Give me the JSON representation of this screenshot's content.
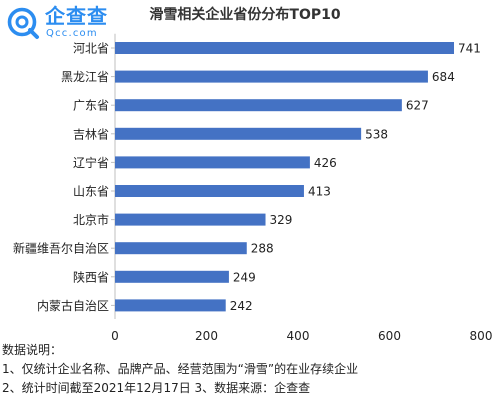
{
  "logo": {
    "name": "企查查",
    "domain": "Qcc.com"
  },
  "chart_data": {
    "type": "bar",
    "orientation": "horizontal",
    "title": "滑雪相关企业省份分布TOP10",
    "categories": [
      "河北省",
      "黑龙江省",
      "广东省",
      "吉林省",
      "辽宁省",
      "山东省",
      "北京市",
      "新疆维吾尔自治区",
      "陕西省",
      "内蒙古自治区"
    ],
    "values": [
      741,
      684,
      627,
      538,
      426,
      413,
      329,
      288,
      249,
      242
    ],
    "xlim": [
      0,
      800
    ],
    "xticks": [
      0,
      200,
      400,
      600,
      800
    ],
    "xlabel": "",
    "ylabel": "",
    "grid": false,
    "legend": "none",
    "bar_color": "#4472c4"
  },
  "notes": {
    "heading": "数据说明：",
    "line1": "1、仅统计企业名称、品牌产品、经营范围为“滑雪”的在业存续企业",
    "line2": "2、统计时间截至2021年12月17日  3、数据来源：企查查"
  }
}
